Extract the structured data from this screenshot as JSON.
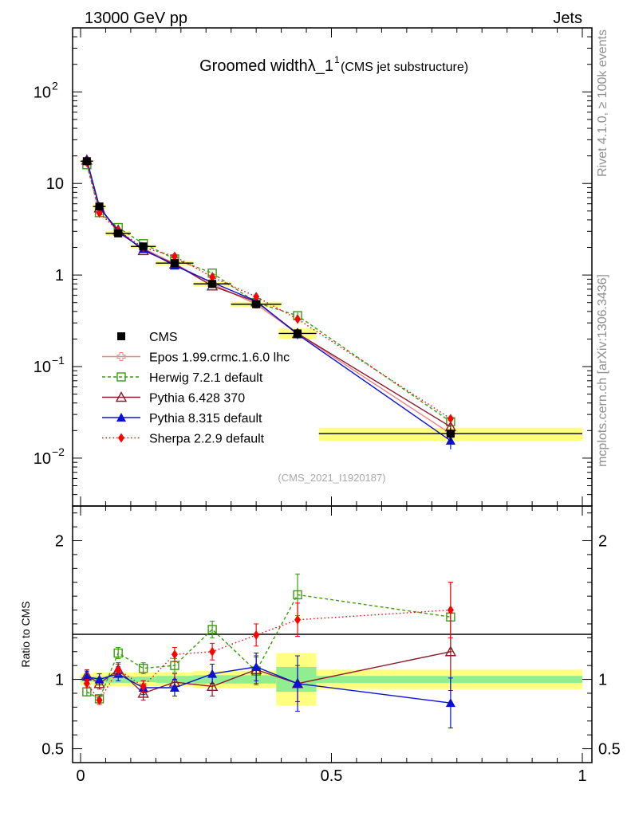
{
  "header": {
    "energy": "13000 GeV pp",
    "category": "Jets"
  },
  "side": {
    "rivet": "Rivet 4.1.0, ≥ 100k events",
    "mcplots": "mcplots.cern.ch [arXiv:1306.3436]"
  },
  "chart_data": [
    {
      "type": "line",
      "panel": "main",
      "title": "Groomed widthλ_1",
      "title_sup": "1",
      "subtitle": "(CMS jet substructure)",
      "watermark": "(CMS_2021_I1920187)",
      "xlabel": "",
      "ylabel": "",
      "yscale": "log",
      "xlim": [
        0,
        1
      ],
      "ylim": [
        0.003,
        500
      ],
      "xticks": [
        "0",
        "0.5",
        "1"
      ],
      "yticks": [
        {
          "base": "10",
          "exp": "−2",
          "value": 0.01
        },
        {
          "base": "10",
          "exp": "−1",
          "value": 0.1
        },
        {
          "base": "1",
          "exp": "",
          "value": 1
        },
        {
          "base": "10",
          "exp": "",
          "value": 10
        },
        {
          "base": "10",
          "exp": "2",
          "value": 100
        }
      ],
      "legend_position": "lower-left",
      "x": [
        0.0125,
        0.0375,
        0.075,
        0.125,
        0.1875,
        0.2625,
        0.35,
        0.4325,
        0.7375
      ],
      "x_err": [
        0.0125,
        0.0125,
        0.025,
        0.025,
        0.0375,
        0.0375,
        0.05,
        0.0375,
        0.2625
      ],
      "series": [
        {
          "name": "CMS",
          "color": "#000000",
          "marker": "square-filled",
          "dash": "",
          "values": [
            17.5,
            5.6,
            2.85,
            2.05,
            1.35,
            0.8,
            0.48,
            0.23,
            0.0185
          ],
          "errors": [
            0.6,
            0.3,
            0.15,
            0.1,
            0.08,
            0.05,
            0.03,
            0.03,
            0.003
          ]
        },
        {
          "name": "Epos 1.99.crmc.1.6.0 lhc",
          "color": "#f08080",
          "marker": "cross-open",
          "dash": "",
          "values": [
            17.5,
            5.5,
            2.9,
            1.95,
            1.33,
            0.8,
            0.48,
            0.23,
            0.0185
          ],
          "errors": [
            0.3,
            0.15,
            0.08,
            0.06,
            0.04,
            0.03,
            0.02,
            0.02,
            0.002
          ]
        },
        {
          "name": "Herwig 7.2.1 default",
          "color": "#3c9a10",
          "marker": "square-open",
          "dash": "4,3",
          "values": [
            16.0,
            4.8,
            3.3,
            2.2,
            1.5,
            1.05,
            0.5,
            0.36,
            0.025
          ],
          "errors": [
            0.3,
            0.15,
            0.08,
            0.06,
            0.04,
            0.03,
            0.02,
            0.03,
            0.003
          ]
        },
        {
          "name": "Pythia 6.428 370",
          "color": "#8b1a2a",
          "marker": "triangle-open",
          "dash": "",
          "values": [
            18.0,
            5.4,
            3.1,
            1.85,
            1.32,
            0.76,
            0.51,
            0.23,
            0.022
          ],
          "errors": [
            0.4,
            0.15,
            0.08,
            0.06,
            0.04,
            0.03,
            0.02,
            0.02,
            0.003
          ]
        },
        {
          "name": "Pythia 8.315 default",
          "color": "#0a10d8",
          "marker": "triangle-filled",
          "dash": "",
          "values": [
            18.0,
            5.6,
            2.95,
            1.92,
            1.27,
            0.83,
            0.52,
            0.225,
            0.0155
          ],
          "errors": [
            0.4,
            0.15,
            0.08,
            0.06,
            0.04,
            0.03,
            0.02,
            0.02,
            0.003
          ]
        },
        {
          "name": "Sherpa 2.2.9 default",
          "color": "#ff0000",
          "marker": "diamond-filled",
          "dash": "1.5,3",
          "values": [
            17.0,
            4.75,
            3.05,
            2.0,
            1.6,
            0.95,
            0.58,
            0.33,
            0.027
          ],
          "errors": [
            0.3,
            0.15,
            0.08,
            0.06,
            0.04,
            0.03,
            0.02,
            0.02,
            0.003
          ]
        }
      ]
    },
    {
      "type": "line",
      "panel": "ratio",
      "ylabel": "Ratio to CMS",
      "xlim": [
        0,
        1
      ],
      "ylim": [
        0.4,
        2.25
      ],
      "yticks": [
        "0.5",
        "1",
        "2"
      ],
      "ytick_values": [
        0.5,
        1,
        2
      ],
      "xticks": [
        "0",
        "0.5",
        "1"
      ],
      "xtick_values": [
        0,
        0.5,
        1
      ],
      "band_bins": [
        [
          0.0,
          0.025
        ],
        [
          0.025,
          0.05
        ],
        [
          0.05,
          0.1
        ],
        [
          0.1,
          0.15
        ],
        [
          0.15,
          0.225
        ],
        [
          0.225,
          0.3
        ],
        [
          0.3,
          0.39
        ],
        [
          0.39,
          0.47
        ],
        [
          0.47,
          1.0
        ]
      ],
      "band_stat": [
        0.015,
        0.02,
        0.025,
        0.02,
        0.025,
        0.03,
        0.03,
        0.09,
        0.025
      ],
      "band_total": [
        0.04,
        0.05,
        0.05,
        0.05,
        0.05,
        0.06,
        0.06,
        0.19,
        0.07
      ],
      "x": [
        0.0125,
        0.0375,
        0.075,
        0.125,
        0.1875,
        0.2625,
        0.35,
        0.4325,
        0.7375
      ],
      "series": [
        {
          "name": "Herwig 7.2.1 default",
          "color": "#3c9a10",
          "marker": "square-open",
          "dash": "4,3",
          "values": [
            0.91,
            0.86,
            1.19,
            1.08,
            1.1,
            1.36,
            1.06,
            1.61,
            1.45
          ],
          "errors": [
            0.03,
            0.03,
            0.04,
            0.04,
            0.05,
            0.06,
            0.1,
            0.15,
            0.25
          ]
        },
        {
          "name": "Pythia 6.428 370",
          "color": "#8b1a2a",
          "marker": "triangle-open",
          "dash": "",
          "values": [
            1.03,
            0.97,
            1.07,
            0.9,
            0.98,
            0.95,
            1.07,
            0.97,
            1.2
          ],
          "errors": [
            0.04,
            0.04,
            0.05,
            0.05,
            0.06,
            0.07,
            0.1,
            0.13,
            0.28
          ]
        },
        {
          "name": "Pythia 8.315 default",
          "color": "#0a10d8",
          "marker": "triangle-filled",
          "dash": "",
          "values": [
            1.02,
            1.0,
            1.04,
            0.94,
            0.94,
            1.04,
            1.09,
            0.97,
            0.83
          ],
          "errors": [
            0.04,
            0.04,
            0.05,
            0.05,
            0.06,
            0.07,
            0.1,
            0.2,
            0.18
          ]
        },
        {
          "name": "Sherpa 2.2.9 default",
          "color": "#ff0000",
          "marker": "diamond-filled",
          "dash": "1.5,3",
          "values": [
            0.97,
            0.85,
            1.07,
            0.95,
            1.18,
            1.2,
            1.32,
            1.43,
            1.5
          ],
          "errors": [
            0.03,
            0.03,
            0.04,
            0.04,
            0.05,
            0.06,
            0.08,
            0.12,
            0.2
          ]
        }
      ]
    }
  ]
}
